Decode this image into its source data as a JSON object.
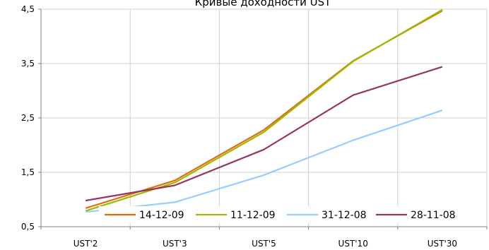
{
  "chart_data": {
    "type": "line",
    "title": "Кривые доходности UST",
    "categories": [
      "UST'2",
      "UST'3",
      "UST'5",
      "UST'10",
      "UST'30"
    ],
    "ylim": [
      0.5,
      4.5
    ],
    "yticks": [
      "0,5",
      "1,5",
      "2,5",
      "3,5",
      "4,5"
    ],
    "ytick_values": [
      0.5,
      1.5,
      2.5,
      3.5,
      4.5
    ],
    "grid": true,
    "legend_position": "bottom-inside",
    "series": [
      {
        "name": "14-12-09",
        "color": "#E46C0A",
        "values": [
          0.84,
          1.35,
          2.28,
          3.55,
          4.47
        ]
      },
      {
        "name": "11-12-09",
        "color": "#9BBB00",
        "values": [
          0.79,
          1.31,
          2.24,
          3.54,
          4.49
        ]
      },
      {
        "name": "31-12-08",
        "color": "#99CCFF",
        "values": [
          0.77,
          0.95,
          1.45,
          2.09,
          2.64
        ]
      },
      {
        "name": "28-11-08",
        "color": "#953564",
        "values": [
          0.98,
          1.26,
          1.92,
          2.92,
          3.44
        ]
      }
    ]
  }
}
